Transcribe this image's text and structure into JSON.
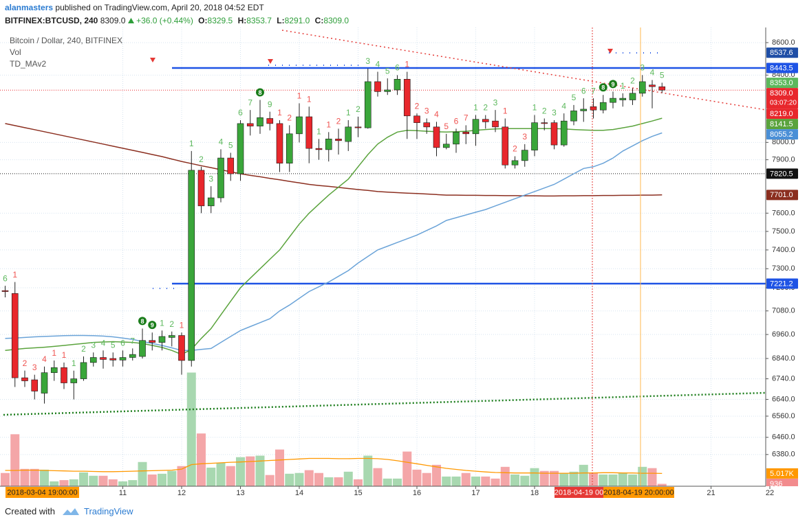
{
  "header": {
    "author": "alanmasters",
    "published": "published on TradingView.com, April 20, 2018 04:52 EDT",
    "symbol": "BITFINEX:BTCUSD, 240",
    "last": "8309.0",
    "change": "+36.0 (+0.44%)",
    "ohlc": [
      {
        "key": "O:",
        "value": "8329.5"
      },
      {
        "key": "H:",
        "value": "8353.7"
      },
      {
        "key": "L:",
        "value": "8291.0"
      },
      {
        "key": "C:",
        "value": "8309.0"
      }
    ]
  },
  "legend": [
    "Bitcoin / Dollar, 240, BITFINEX",
    "Vol",
    "TD_MAv2"
  ],
  "footer": {
    "created": "Created with",
    "brand": "TradingView"
  },
  "chart_data": {
    "type": "candlestick",
    "log_scale": true,
    "grid": true,
    "ylim": [
      6235,
      8695
    ],
    "yticks": [
      {
        "value": 8600,
        "label": "8600.0"
      },
      {
        "value": 8400,
        "label": "8400.0"
      },
      {
        "value": 8000,
        "label": "8000.0"
      },
      {
        "value": 7900,
        "label": "7900.0"
      },
      {
        "value": 7600,
        "label": "7600.0"
      },
      {
        "value": 7500,
        "label": "7500.0"
      },
      {
        "value": 7400,
        "label": "7400.0"
      },
      {
        "value": 7300,
        "label": "7300.0"
      },
      {
        "value": 7200,
        "label": "7200.0"
      },
      {
        "value": 7080,
        "label": "7080.0"
      },
      {
        "value": 6960,
        "label": "6960.0"
      },
      {
        "value": 6840,
        "label": "6840.0"
      },
      {
        "value": 6740,
        "label": "6740.0"
      },
      {
        "value": 6640,
        "label": "6640.0"
      },
      {
        "value": 6560,
        "label": "6560.0"
      },
      {
        "value": 6460,
        "label": "6460.0"
      },
      {
        "value": 6380,
        "label": "6380.0"
      }
    ],
    "xticks": [
      11,
      12,
      13,
      14,
      15,
      16,
      17,
      18,
      21,
      22
    ],
    "up_color": "#3aa63a",
    "down_color": "#e8272c",
    "open": [
      7185,
      7170,
      6745,
      6735,
      6670,
      6770,
      6795,
      6720,
      6740,
      6820,
      6845,
      6840,
      6832,
      6845,
      6850,
      6930,
      6920,
      6945,
      6955,
      6830,
      7840,
      7640,
      7685,
      7910,
      7820,
      8110,
      8095,
      8140,
      8110,
      7880,
      8050,
      8150,
      7965,
      7958,
      8020,
      8005,
      8090,
      8085,
      8360,
      8300,
      8310,
      8375,
      8155,
      8115,
      8090,
      7970,
      7990,
      8060,
      8050,
      8135,
      8125,
      8090,
      7870,
      7895,
      7955,
      8115,
      8115,
      7985,
      8125,
      8185,
      8210,
      8190,
      8235,
      8250,
      8250,
      8290,
      8340,
      8329.5
    ],
    "high": [
      7210,
      7230,
      6780,
      6760,
      6800,
      6830,
      6820,
      6780,
      6850,
      6870,
      6880,
      6870,
      6880,
      6890,
      6990,
      6970,
      6980,
      6975,
      6970,
      7950,
      7860,
      7750,
      7960,
      7940,
      8130,
      8190,
      8250,
      8180,
      8130,
      8100,
      8230,
      8210,
      8020,
      8060,
      8080,
      8130,
      8150,
      8440,
      8420,
      8380,
      8400,
      8420,
      8170,
      8140,
      8120,
      8050,
      8080,
      8100,
      8160,
      8160,
      8190,
      8140,
      7920,
      7990,
      8160,
      8140,
      8130,
      8170,
      8220,
      8260,
      8260,
      8280,
      8300,
      8290,
      8320,
      8400,
      8370,
      8353.7
    ],
    "low": [
      7150,
      6700,
      6700,
      6640,
      6620,
      6730,
      6690,
      6640,
      6730,
      6800,
      6790,
      6800,
      6800,
      6830,
      6840,
      6880,
      6880,
      6900,
      6760,
      6800,
      7600,
      7600,
      7660,
      7780,
      7780,
      8040,
      8050,
      8070,
      7830,
      7830,
      8000,
      7880,
      7900,
      7890,
      7930,
      7950,
      8030,
      8080,
      8270,
      8280,
      8280,
      8020,
      8020,
      8050,
      7920,
      7960,
      7940,
      7990,
      7980,
      8080,
      8060,
      7850,
      7850,
      7860,
      7920,
      8070,
      7960,
      7975,
      8100,
      8120,
      8140,
      8170,
      8200,
      8210,
      8220,
      8270,
      8200,
      8291
    ],
    "close": [
      7180,
      6745,
      6730,
      6680,
      6770,
      6795,
      6720,
      6740,
      6820,
      6845,
      6835,
      6832,
      6845,
      6860,
      6930,
      6920,
      6950,
      6955,
      6830,
      7840,
      7640,
      7685,
      7910,
      7820,
      8110,
      8095,
      8145,
      8110,
      7880,
      8050,
      8150,
      7965,
      7958,
      8020,
      8010,
      8090,
      8085,
      8360,
      8300,
      8310,
      8375,
      8155,
      8115,
      8090,
      7970,
      7990,
      8060,
      8050,
      8135,
      8120,
      8090,
      7870,
      7895,
      7955,
      8115,
      8110,
      7985,
      8125,
      8185,
      8195,
      8190,
      8235,
      8260,
      8260,
      8290,
      8360,
      8330,
      8309
    ],
    "td_labels": [
      6,
      1,
      2,
      3,
      4,
      1,
      1,
      1,
      2,
      3,
      4,
      5,
      6,
      7,
      8,
      9,
      1,
      2,
      1,
      1,
      2,
      3,
      4,
      5,
      6,
      7,
      8,
      9,
      1,
      2,
      1,
      1,
      1,
      1,
      2,
      1,
      2,
      3,
      4,
      5,
      6,
      1,
      2,
      3,
      4,
      5,
      6,
      7,
      1,
      2,
      3,
      1,
      2,
      3,
      1,
      2,
      3,
      4,
      5,
      6,
      7,
      8,
      9,
      1,
      2,
      3,
      4,
      5
    ],
    "td_colors": [
      "#5cb85c",
      "#ef5350",
      "#ef5350",
      "#ef5350",
      "#ef5350",
      "#ef5350",
      "#ef5350",
      "#5cb85c",
      "#5cb85c",
      "#5cb85c",
      "#5cb85c",
      "#5cb85c",
      "#5cb85c",
      "#5cb85c",
      "#1b7d1b",
      "#1b7d1b",
      "#5cb85c",
      "#5cb85c",
      "#ef5350",
      "#5cb85c",
      "#5cb85c",
      "#5cb85c",
      "#5cb85c",
      "#5cb85c",
      "#5cb85c",
      "#5cb85c",
      "#1b7d1b",
      "#5cb85c",
      "#ef5350",
      "#ef5350",
      "#ef5350",
      "#ef5350",
      "#5cb85c",
      "#ef5350",
      "#ef5350",
      "#5cb85c",
      "#5cb85c",
      "#5cb85c",
      "#5cb85c",
      "#5cb85c",
      "#5cb85c",
      "#ef5350",
      "#ef5350",
      "#ef5350",
      "#ef5350",
      "#ef5350",
      "#ef5350",
      "#ef5350",
      "#5cb85c",
      "#5cb85c",
      "#5cb85c",
      "#ef5350",
      "#ef5350",
      "#ef5350",
      "#5cb85c",
      "#5cb85c",
      "#5cb85c",
      "#5cb85c",
      "#5cb85c",
      "#5cb85c",
      "#5cb85c",
      "#1b7d1b",
      "#1b7d1b",
      "#5cb85c",
      "#5cb85c",
      "#5cb85c",
      "#5cb85c",
      "#5cb85c"
    ],
    "td_badge_color": "#1b7d1b",
    "ma_series": [
      {
        "color": "#8b2e1f",
        "values": [
          8110,
          8098,
          8086,
          8074,
          8062,
          8050,
          8038,
          8026,
          8014,
          8002,
          7990,
          7978,
          7966,
          7954,
          7942,
          7930,
          7918,
          7904,
          7890,
          7878,
          7866,
          7855,
          7843,
          7831,
          7820,
          7811,
          7803,
          7794,
          7786,
          7777,
          7769,
          7760,
          7754,
          7749,
          7743,
          7737,
          7731,
          7726,
          7720,
          7717,
          7714,
          7711,
          7709,
          7706,
          7703,
          7700,
          7700,
          7699,
          7699,
          7698,
          7698,
          7697,
          7697,
          7696,
          7696,
          7695,
          7695,
          7696,
          7696,
          7697,
          7697,
          7698,
          7698,
          7699,
          7699,
          7700,
          7700,
          7701
        ]
      },
      {
        "color": "#5aa33c",
        "values": [
          6880,
          6885,
          6890,
          6893,
          6896,
          6900,
          6905,
          6910,
          6915,
          6920,
          6922,
          6924,
          6922,
          6920,
          6915,
          6905,
          6895,
          6880,
          6860,
          6885,
          6940,
          6990,
          7060,
          7130,
          7200,
          7250,
          7300,
          7350,
          7400,
          7470,
          7540,
          7600,
          7650,
          7700,
          7745,
          7790,
          7860,
          7930,
          7990,
          8030,
          8060,
          8070,
          8068,
          8065,
          8062,
          8060,
          8062,
          8065,
          8070,
          8075,
          8078,
          8080,
          8080,
          8080,
          8080,
          8080,
          8080,
          8078,
          8075,
          8072,
          8070,
          8070,
          8075,
          8085,
          8095,
          8110,
          8125,
          8141.5
        ]
      },
      {
        "color": "#6aa3d8",
        "values": [
          6940,
          6942,
          6945,
          6948,
          6950,
          6952,
          6954,
          6955,
          6955,
          6954,
          6952,
          6948,
          6942,
          6935,
          6925,
          6915,
          6905,
          6893,
          6880,
          6880,
          6885,
          6890,
          6920,
          6950,
          6980,
          7000,
          7020,
          7040,
          7080,
          7110,
          7145,
          7180,
          7205,
          7230,
          7260,
          7290,
          7330,
          7365,
          7400,
          7420,
          7440,
          7460,
          7480,
          7505,
          7530,
          7560,
          7575,
          7590,
          7605,
          7620,
          7640,
          7660,
          7680,
          7700,
          7720,
          7740,
          7760,
          7790,
          7820,
          7850,
          7860,
          7880,
          7910,
          7950,
          7980,
          8010,
          8035,
          8055.2
        ]
      }
    ],
    "volume": [
      5200,
      20400,
      6800,
      6800,
      6500,
      1900,
      2400,
      2700,
      5400,
      4100,
      4100,
      2700,
      1900,
      2400,
      9500,
      4600,
      4900,
      6000,
      7900,
      44600,
      20700,
      7300,
      9200,
      7900,
      11400,
      11700,
      12000,
      4400,
      14400,
      4900,
      5200,
      6300,
      5200,
      3500,
      3500,
      5700,
      2700,
      12000,
      7100,
      3000,
      3000,
      13600,
      6500,
      5200,
      8400,
      3800,
      3800,
      5200,
      3800,
      3800,
      3000,
      7600,
      4600,
      4100,
      7100,
      6000,
      6000,
      5200,
      5700,
      8400,
      5400,
      4600,
      4600,
      5200,
      4600,
      7600,
      7100,
      936
    ],
    "volume_ylim": [
      0,
      180000
    ],
    "volume_up_color": "#a8d8b0",
    "volume_down_color": "#f4a6a8",
    "volume_ma": {
      "color": "#ff9800",
      "values": [
        6200,
        6200,
        6300,
        6300,
        6200,
        6100,
        6000,
        5900,
        5900,
        5800,
        5700,
        5700,
        5800,
        5900,
        6000,
        6100,
        6200,
        6300,
        6700,
        8500,
        8800,
        9000,
        9200,
        9400,
        9500,
        9700,
        9900,
        10100,
        10300,
        10500,
        10700,
        10900,
        10900,
        10900,
        10800,
        10800,
        10900,
        10900,
        10800,
        10500,
        10000,
        9400,
        8800,
        8200,
        7600,
        7000,
        6600,
        6200,
        5900,
        5600,
        5400,
        5300,
        5200,
        5200,
        5200,
        5100,
        5100,
        5100,
        5100,
        5200,
        5200,
        5300,
        5300,
        5200,
        5200,
        5100,
        5100,
        5017
      ]
    },
    "price_labels": [
      {
        "value": 8537.6,
        "label": "8537.6",
        "color": "#1f4ea6"
      },
      {
        "value": 8443.5,
        "label": "8443.5",
        "color": "#1e53e5",
        "line": "solid"
      },
      {
        "value": 8353.0,
        "label": "8353.0",
        "color": "#5cb85c"
      },
      {
        "value": 8309.0,
        "label": "8309.0",
        "color": "#e8272c",
        "line": "dotted",
        "countdown": "03:07:20"
      },
      {
        "value": 8219.0,
        "label": "8219.0",
        "color": "#e8272c"
      },
      {
        "value": 8141.5,
        "label": "8141.5",
        "color": "#5aa33c"
      },
      {
        "value": 8055.2,
        "label": "8055.2",
        "color": "#4a8fd6"
      },
      {
        "value": 7820.5,
        "label": "7820.5",
        "color": "#111111",
        "line": "dotted"
      },
      {
        "value": 7701.0,
        "label": "7701.0",
        "color": "#8b2e1f"
      },
      {
        "value": 7221.2,
        "label": "7221.2",
        "color": "#1e53e5",
        "line": "solid"
      }
    ],
    "volume_labels": [
      {
        "value": 5017,
        "label": "5.017K",
        "color": "#ff9800"
      },
      {
        "value": 936,
        "label": "936",
        "color": "#f28b8d"
      }
    ],
    "cursor_labels": [
      {
        "label": "2018-03-04 19:00:00",
        "color": "#ff9800"
      },
      {
        "label": "2018-04-19 00",
        "color": "#e53935"
      },
      {
        "label": "2018-04-19 20:00:00",
        "color": "#ff9800"
      }
    ]
  }
}
